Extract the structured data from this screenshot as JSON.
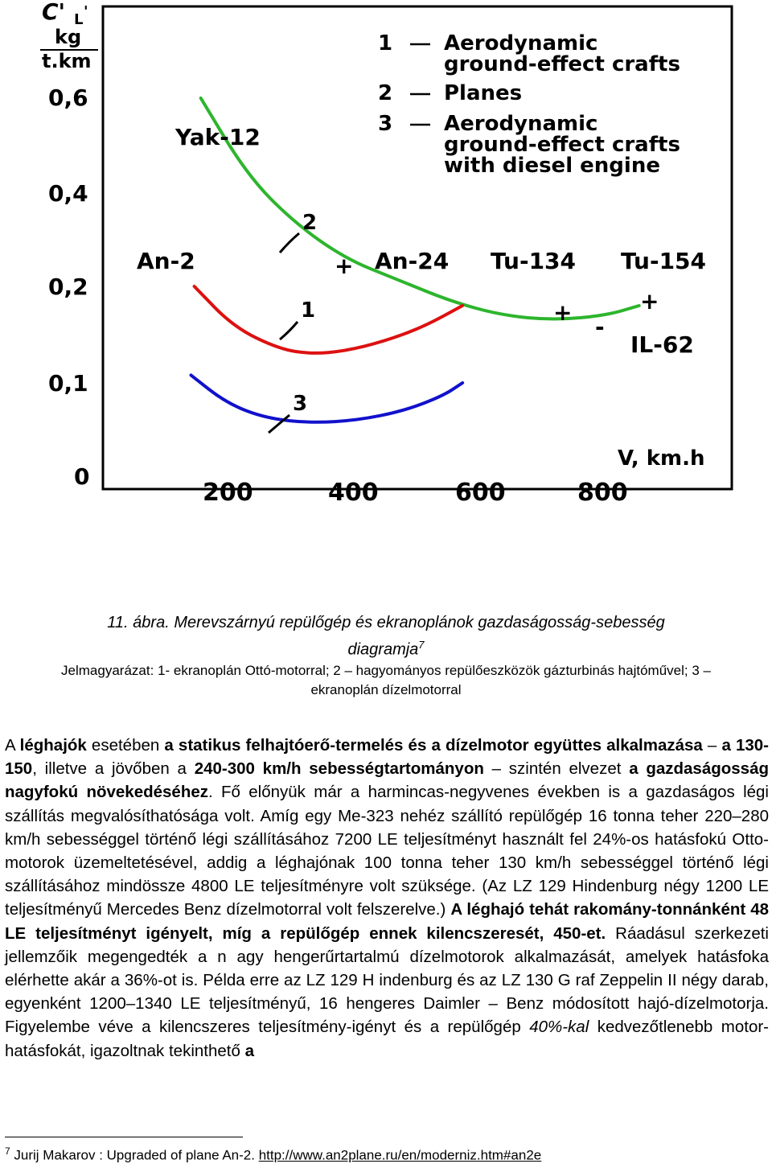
{
  "chart_data": {
    "type": "line",
    "ylabel_top": "C'",
    "ylabel_sub": "L",
    "ylabel_sup": "'",
    "ylabel_unit_top": "kg",
    "ylabel_unit_bottom": "t.km",
    "xlabel": "V, km.h",
    "x_ticks": [
      "200",
      "400",
      "600",
      "800"
    ],
    "y_ticks": [
      "0,6",
      "0,4",
      "0,2",
      "0,1",
      "0"
    ],
    "legend": [
      {
        "num": "1",
        "lines": [
          "Aerodynamic",
          "ground-effect crafts"
        ]
      },
      {
        "num": "2",
        "lines": [
          "Planes"
        ]
      },
      {
        "num": "3",
        "lines": [
          "Aerodynamic",
          "ground-effect crafts",
          "with diesel engine"
        ]
      }
    ],
    "series": [
      {
        "name": "2",
        "color": "#2db52d",
        "x": [
          180,
          250,
          320,
          400,
          480,
          560,
          640,
          720,
          800,
          850
        ],
        "values": [
          0.6,
          0.44,
          0.34,
          0.26,
          0.215,
          0.185,
          0.17,
          0.165,
          0.17,
          0.18
        ]
      },
      {
        "name": "1",
        "color": "#dd1111",
        "x": [
          170,
          230,
          300,
          350,
          400,
          460,
          520,
          580
        ],
        "values": [
          0.2,
          0.158,
          0.135,
          0.13,
          0.133,
          0.143,
          0.158,
          0.18
        ]
      },
      {
        "name": "3",
        "color": "#1111cc",
        "x": [
          165,
          220,
          280,
          350,
          420,
          490,
          550,
          580
        ],
        "values": [
          0.108,
          0.078,
          0.062,
          0.057,
          0.06,
          0.07,
          0.086,
          0.1
        ]
      }
    ],
    "annotations": [
      {
        "text": "Yak-12",
        "kind": "label"
      },
      {
        "text": "An-2",
        "kind": "label"
      },
      {
        "text": "An-24",
        "kind": "label"
      },
      {
        "text": "Tu-134",
        "kind": "label"
      },
      {
        "text": "Tu-154",
        "kind": "label"
      },
      {
        "text": "IL-62",
        "kind": "label"
      },
      {
        "text": "1",
        "kind": "curve-number"
      },
      {
        "text": "2",
        "kind": "curve-number"
      },
      {
        "text": "3",
        "kind": "curve-number"
      }
    ]
  },
  "caption": {
    "line1": "11. ábra. Merevszárnyú repülőgép és ekranoplánok gazdaságosság-sebesség",
    "line2": "diagramja",
    "line2_sup": "7",
    "legend": "Jelmagyarázat: 1- ekranoplán Ottó-motorral; 2 – hagyományos repülőeszközök gázturbinás hajtóművel; 3 – ekranoplán dízelmotorral"
  },
  "paragraph": [
    {
      "t": "A ",
      "b": false
    },
    {
      "t": "léghajók",
      "b": true
    },
    {
      "t": " esetében ",
      "b": false
    },
    {
      "t": "a statikus felhajtóerő-termelés és a dízelmotor együttes alkalmazása",
      "b": true
    },
    {
      "t": " – ",
      "b": false
    },
    {
      "t": "a 130-150",
      "b": true
    },
    {
      "t": ", illetve a jövőben a ",
      "b": false
    },
    {
      "t": "240-300 km/h sebességtartományon",
      "b": true
    },
    {
      "t": " – szintén elvezet ",
      "b": false
    },
    {
      "t": "a gazdaságosság nagyfokú növekedéséhez",
      "b": true
    },
    {
      "t": ". Fő előnyük már a harmincas-negyvenes években is a gazdaságos légi szállítás megvalósíthatósága volt. Amíg egy Me-323 nehéz szállító repülőgép 16 tonna teher 220–280 km/h sebességgel történő légi szállításához 7200 LE teljesítményt használt fel 24%-os hatásfokú Otto-motorok üzemeltetésével, addig a léghajónak 100 tonna teher 130 km/h sebességgel történő légi szállításához mindössze 4800 LE teljesítményre volt szüksége. (Az LZ 129 Hindenburg négy 1200 LE teljesítményű Mercedes Benz dízelmotorral volt felszerelve.) ",
      "b": false
    },
    {
      "t": "A léghajó tehát rakomány-tonnánként 48 LE teljesítményt igényelt, míg a repülőgép ennek kilencszeresét, 450-et.",
      "b": true
    },
    {
      "t": " Ráadásul szerkezeti jellemzőik megengedték a n agy hengerűrtartalmú dízelmotorok alkalmazását, amelyek hatásfoka elérhette akár a 36%-ot is. Példa erre az LZ 129 H indenburg és az LZ 130 G raf Zeppelin II négy darab, egyenként 1200–1340 LE teljesítményű, 16 hengeres Daimler – Benz módosított hajó-dízelmotorja. Figyelembe véve a kilencszeres teljesítmény-igényt és a repülőgép ",
      "b": false
    },
    {
      "t": "40%-kal",
      "b": false,
      "i": true
    },
    {
      "t": " kedvezőtlenebb motor-hatásfokát, igazoltnak tekinthető ",
      "b": false
    },
    {
      "t": "a",
      "b": true
    }
  ],
  "footnote": {
    "num": "7",
    "text": " Jurij Makarov : Upgraded of plane An-2. ",
    "link": "http://www.an2plane.ru/en/moderniz.htm#an2e"
  }
}
